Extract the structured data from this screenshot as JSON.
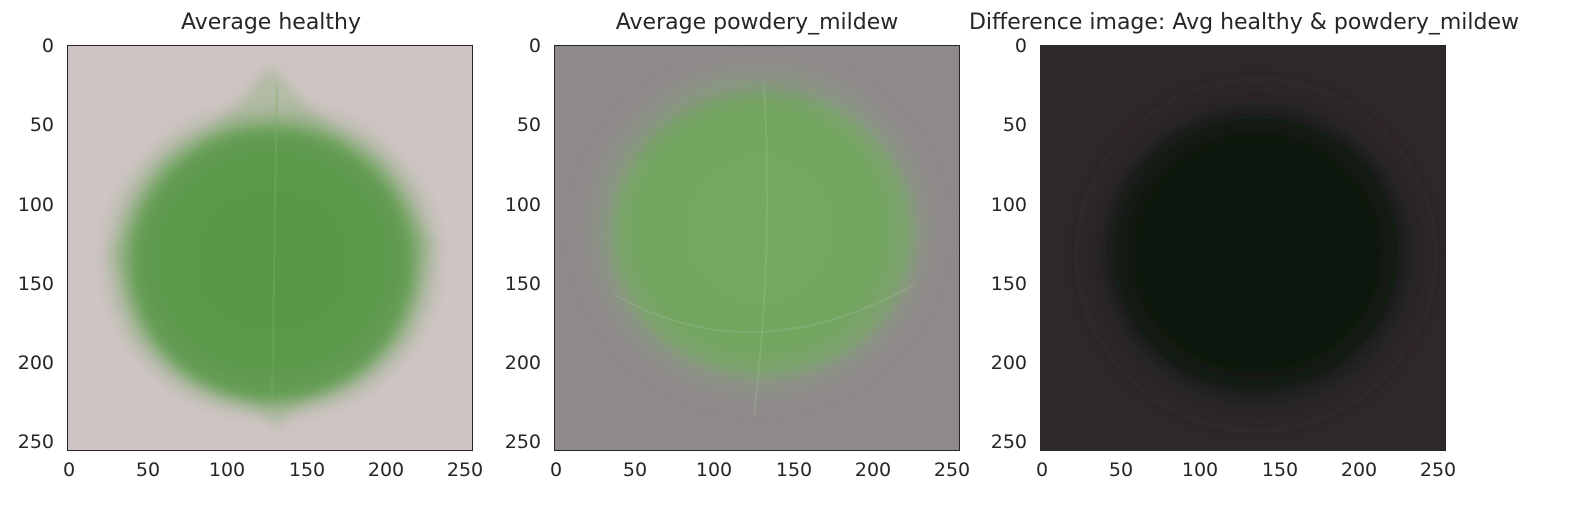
{
  "figure": {
    "panels": [
      {
        "id": "avg-healthy",
        "title": "Average healthy",
        "image_kind": "average-healthy-leaf",
        "background_color": "#cfc4c4",
        "leaf_color": "#5c9a4c"
      },
      {
        "id": "avg-powdery",
        "title": "Average powdery_mildew",
        "image_kind": "average-powdery-mildew-leaf",
        "background_color": "#8f8a8a",
        "leaf_color": "#73a860"
      },
      {
        "id": "difference",
        "title": "Difference image: Avg healthy & powdery_mildew",
        "image_kind": "difference-image",
        "background_color": "#2f2828",
        "leaf_color": "#0d160b"
      }
    ],
    "axis": {
      "y_ticks": [
        "0",
        "50",
        "100",
        "150",
        "200",
        "250"
      ],
      "x_ticks": [
        "0",
        "50",
        "100",
        "150",
        "200",
        "250"
      ],
      "y_values": [
        0,
        50,
        100,
        150,
        200,
        250
      ],
      "x_values": [
        0,
        50,
        100,
        150,
        200,
        250
      ],
      "extent": [
        0,
        256
      ]
    }
  }
}
